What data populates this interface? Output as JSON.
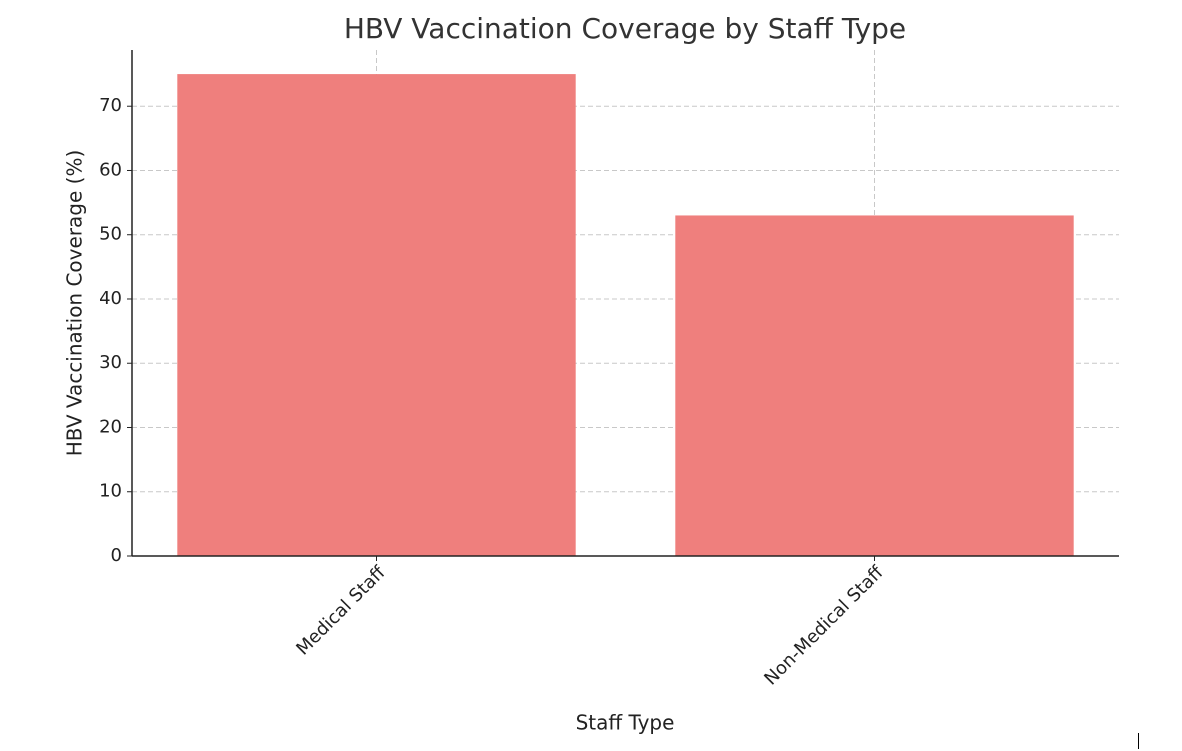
{
  "chart_data": {
    "type": "bar",
    "title": "HBV Vaccination Coverage by Staff Type",
    "x_label": "Staff Type",
    "y_label": "HBV Vaccination Coverage (%)",
    "categories": [
      "Medical Staff",
      "Non-Medical Staff"
    ],
    "values": [
      75,
      53
    ],
    "color": "#ef7f7d",
    "ylim": [
      0,
      78.75
    ],
    "yticks": [
      0,
      10,
      20,
      30,
      40,
      50,
      60,
      70
    ],
    "grid": true
  }
}
